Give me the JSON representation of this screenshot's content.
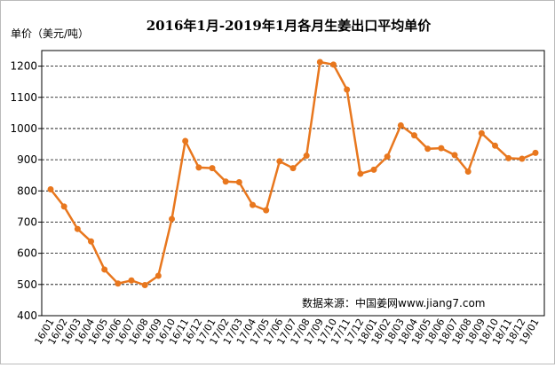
{
  "chart_data": {
    "type": "line",
    "title": "2016年1月-2019年1月各月生姜出口平均单价",
    "y_label": "单价（美元/吨）",
    "annotation": "数据来源：中国姜网www.jiang7.com",
    "categories": [
      "16/01",
      "16/02",
      "16/03",
      "16/04",
      "16/05",
      "16/06",
      "16/07",
      "16/08",
      "16/09",
      "16/10",
      "16/11",
      "16/12",
      "17/01",
      "17/02",
      "17/03",
      "17/04",
      "17/05",
      "17/06",
      "17/07",
      "17/08",
      "17/09",
      "17/10",
      "17/11",
      "17/12",
      "18/01",
      "18/02",
      "18/03",
      "18/04",
      "18/05",
      "18/06",
      "18/07",
      "18/08",
      "18/09",
      "18/10",
      "18/11",
      "18/12",
      "19/01"
    ],
    "series": [
      {
        "name": "单价",
        "color": "#e8771e",
        "values": [
          805,
          750,
          678,
          638,
          548,
          503,
          513,
          498,
          528,
          710,
          960,
          875,
          873,
          830,
          828,
          755,
          738,
          895,
          873,
          913,
          1213,
          1205,
          1125,
          855,
          868,
          910,
          1010,
          978,
          935,
          937,
          915,
          862,
          985,
          945,
          905,
          903,
          922
        ]
      }
    ],
    "ylim": [
      400,
      1250
    ],
    "yticks": [
      400,
      500,
      600,
      700,
      800,
      900,
      1000,
      1100,
      1200
    ],
    "grid": true
  }
}
